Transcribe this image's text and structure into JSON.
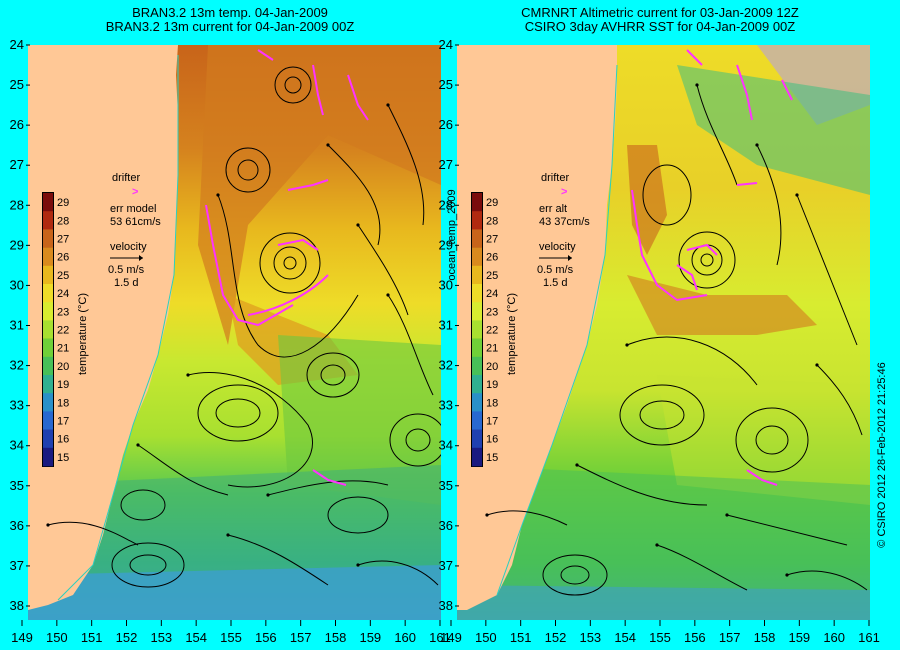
{
  "left_panel": {
    "title_line1": "BRAN3.2 13m temp. 04-Jan-2009",
    "title_line2": "BRAN3.2 13m current for 04-Jan-2009 00Z",
    "colorbar_label": "temperature (°C)",
    "legend": {
      "drifter": "drifter",
      "drifter_marker": ">",
      "err_label": "err model",
      "err_value": "53 61cm/s",
      "velocity": "velocity",
      "speed": "0.5 m/s",
      "duration": "1.5 d"
    }
  },
  "right_panel": {
    "title_line1": "CMRNRT Altimetric current for 03-Jan-2009 12Z",
    "title_line2": "CSIRO 3day AVHRR SST for 04-Jan-2009 00Z",
    "colorbar_label": "temperature (°C)",
    "legend": {
      "drifter": "drifter",
      "drifter_marker": ">",
      "err_label": "err alt",
      "err_value": "43 37cm/s",
      "velocity": "velocity",
      "speed": "0.5 m/s",
      "duration": "1.5 d"
    }
  },
  "colorbar_ticks": [
    "29",
    "28",
    "27",
    "26",
    "25",
    "24",
    "23",
    "22",
    "21",
    "20",
    "19",
    "18",
    "17",
    "16",
    "15"
  ],
  "colorbar_colors": [
    "#7a0c0c",
    "#b02a10",
    "#c8641a",
    "#d98a1e",
    "#e8b81e",
    "#eedc28",
    "#d8ec30",
    "#a8e030",
    "#70d038",
    "#48c058",
    "#30b090",
    "#2a90c8",
    "#2868d0",
    "#2040b0",
    "#1a1a80"
  ],
  "lat_labels": [
    "24",
    "25",
    "26",
    "27",
    "28",
    "29",
    "30",
    "31",
    "32",
    "33",
    "34",
    "35",
    "36",
    "37",
    "38"
  ],
  "lon_labels": [
    "149",
    "150",
    "151",
    "152",
    "153",
    "154",
    "155",
    "156",
    "157",
    "158",
    "159",
    "160",
    "161"
  ],
  "side_label": "ocean_temp_2009",
  "copyright": "© CSIRO 2012  28-Feb-2012 21:25:46",
  "colors": {
    "background": "#00ffff",
    "land": "#ffc896",
    "drifter": "#ff33ff"
  }
}
